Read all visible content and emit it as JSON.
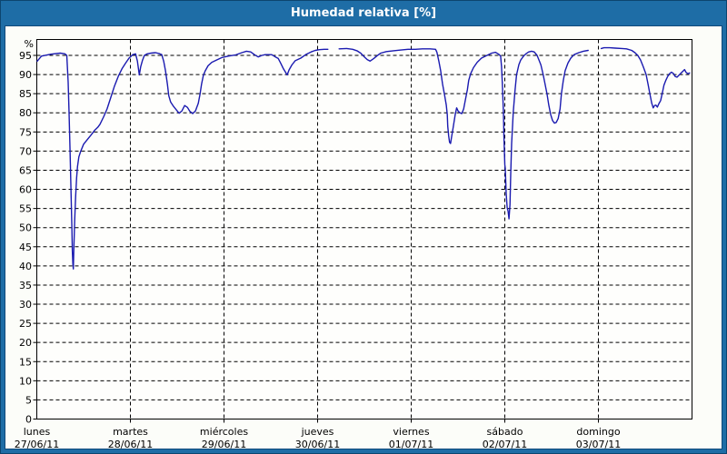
{
  "window": {
    "title": "Humedad relativa [%]"
  },
  "colors": {
    "titlebar_bg": "#1e6da6",
    "window_border": "#0d456f",
    "panel_bg": "#fcfdf9",
    "panel_border": "#10497a",
    "plot_bg": "#fefefc",
    "grid": "#000000",
    "axis_text": "#000000",
    "line": "#1a1ab0",
    "title_text": "#ffffff"
  },
  "chart_data": {
    "type": "line",
    "title": "Humedad relativa [%]",
    "unit_label": "%",
    "ylim": [
      0,
      100
    ],
    "ytick_values": [
      0,
      5,
      10,
      15,
      20,
      25,
      30,
      35,
      40,
      45,
      50,
      55,
      60,
      65,
      70,
      75,
      80,
      85,
      90,
      95
    ],
    "grid": "dashed",
    "legend_position": "none",
    "x_days": [
      {
        "name": "lunes",
        "date": "27/06/11"
      },
      {
        "name": "martes",
        "date": "28/06/11"
      },
      {
        "name": "miércoles",
        "date": "29/06/11"
      },
      {
        "name": "jueves",
        "date": "30/06/11"
      },
      {
        "name": "viernes",
        "date": "01/07/11"
      },
      {
        "name": "sábado",
        "date": "02/07/11"
      },
      {
        "name": "domingo",
        "date": "03/07/11"
      }
    ],
    "series": [
      {
        "name": "Humedad relativa",
        "color": "#1a1ab0",
        "x_unit": "days_since_start",
        "segments": [
          [
            [
              0.005,
              93.5
            ],
            [
              0.05,
              94.8
            ],
            [
              0.15,
              95.3
            ],
            [
              0.25,
              95.6
            ],
            [
              0.3,
              95.4
            ],
            [
              0.32,
              95.0
            ],
            [
              0.335,
              88
            ],
            [
              0.345,
              80
            ],
            [
              0.355,
              70
            ],
            [
              0.365,
              60
            ],
            [
              0.375,
              50
            ],
            [
              0.38,
              44
            ],
            [
              0.385,
              40.5
            ],
            [
              0.39,
              39.2
            ],
            [
              0.395,
              44
            ],
            [
              0.405,
              52
            ],
            [
              0.415,
              58
            ],
            [
              0.425,
              63
            ],
            [
              0.435,
              66
            ],
            [
              0.45,
              68.5
            ],
            [
              0.47,
              70
            ],
            [
              0.5,
              71.8
            ],
            [
              0.54,
              73
            ],
            [
              0.58,
              74.2
            ],
            [
              0.62,
              75.5
            ],
            [
              0.65,
              76.2
            ],
            [
              0.675,
              77
            ],
            [
              0.715,
              79
            ],
            [
              0.75,
              81
            ],
            [
              0.79,
              84
            ],
            [
              0.83,
              87
            ],
            [
              0.87,
              89.5
            ],
            [
              0.91,
              91.5
            ],
            [
              0.95,
              93
            ],
            [
              0.985,
              94.3
            ],
            [
              1.025,
              95.2
            ],
            [
              1.055,
              95.4
            ],
            [
              1.075,
              93.5
            ],
            [
              1.095,
              89.9
            ],
            [
              1.11,
              92
            ],
            [
              1.13,
              93.8
            ],
            [
              1.15,
              95.0
            ],
            [
              1.18,
              95.4
            ],
            [
              1.22,
              95.6
            ],
            [
              1.27,
              95.7
            ],
            [
              1.305,
              95.5
            ],
            [
              1.335,
              95.2
            ],
            [
              1.355,
              93.5
            ],
            [
              1.375,
              91
            ],
            [
              1.395,
              87.5
            ],
            [
              1.41,
              84.5
            ],
            [
              1.43,
              82.8
            ],
            [
              1.46,
              81.7
            ],
            [
              1.49,
              80.8
            ],
            [
              1.52,
              79.9
            ],
            [
              1.55,
              80.5
            ],
            [
              1.58,
              81.9
            ],
            [
              1.61,
              81.4
            ],
            [
              1.635,
              80.4
            ],
            [
              1.665,
              79.8
            ],
            [
              1.695,
              80.5
            ],
            [
              1.725,
              82.5
            ],
            [
              1.745,
              85
            ],
            [
              1.76,
              87.5
            ],
            [
              1.78,
              89.8
            ],
            [
              1.8,
              91
            ],
            [
              1.83,
              92.3
            ],
            [
              1.87,
              93.2
            ],
            [
              1.92,
              93.8
            ],
            [
              1.975,
              94.4
            ],
            [
              2.045,
              94.8
            ],
            [
              2.12,
              95.1
            ],
            [
              2.19,
              95.7
            ],
            [
              2.24,
              96.1
            ],
            [
              2.285,
              95.9
            ],
            [
              2.325,
              95.2
            ],
            [
              2.365,
              94.6
            ],
            [
              2.405,
              95.0
            ],
            [
              2.44,
              95.2
            ],
            [
              2.51,
              95.2
            ],
            [
              2.55,
              94.6
            ],
            [
              2.58,
              94.2
            ],
            [
              2.605,
              93.0
            ],
            [
              2.635,
              91.5
            ],
            [
              2.675,
              89.9
            ],
            [
              2.695,
              91.2
            ],
            [
              2.725,
              92.5
            ],
            [
              2.76,
              93.6
            ],
            [
              2.82,
              94.3
            ],
            [
              2.88,
              95.3
            ],
            [
              2.93,
              95.9
            ],
            [
              2.975,
              96.3
            ],
            [
              3.02,
              96.5
            ],
            [
              3.07,
              96.6
            ],
            [
              3.11,
              96.6
            ]
          ],
          [
            [
              3.23,
              96.7
            ],
            [
              3.31,
              96.8
            ],
            [
              3.375,
              96.6
            ],
            [
              3.42,
              96.2
            ],
            [
              3.46,
              95.6
            ],
            [
              3.5,
              94.6
            ],
            [
              3.53,
              93.9
            ],
            [
              3.56,
              93.5
            ],
            [
              3.6,
              94.2
            ],
            [
              3.635,
              94.9
            ],
            [
              3.675,
              95.6
            ],
            [
              3.735,
              96.0
            ],
            [
              3.81,
              96.2
            ],
            [
              3.89,
              96.4
            ],
            [
              3.965,
              96.6
            ],
            [
              4.045,
              96.6
            ],
            [
              4.12,
              96.7
            ],
            [
              4.2,
              96.7
            ],
            [
              4.26,
              96.6
            ],
            [
              4.275,
              95.8
            ],
            [
              4.295,
              93.5
            ],
            [
              4.315,
              91
            ],
            [
              4.335,
              87.5
            ],
            [
              4.355,
              84.8
            ],
            [
              4.375,
              82
            ],
            [
              4.385,
              79.5
            ],
            [
              4.39,
              76.5
            ],
            [
              4.4,
              74
            ],
            [
              4.41,
              72.3
            ],
            [
              4.42,
              72.0
            ],
            [
              4.43,
              73.5
            ],
            [
              4.45,
              76.5
            ],
            [
              4.47,
              79.5
            ],
            [
              4.485,
              81.3
            ],
            [
              4.5,
              80.5
            ],
            [
              4.52,
              80.0
            ],
            [
              4.54,
              79.8
            ],
            [
              4.56,
              81
            ],
            [
              4.58,
              83.5
            ],
            [
              4.6,
              86
            ],
            [
              4.615,
              88.5
            ],
            [
              4.635,
              90.2
            ],
            [
              4.665,
              91.8
            ],
            [
              4.705,
              93.2
            ],
            [
              4.75,
              94.3
            ],
            [
              4.81,
              95.0
            ],
            [
              4.86,
              95.6
            ],
            [
              4.9,
              95.8
            ],
            [
              4.935,
              95.3
            ],
            [
              4.955,
              94.8
            ],
            [
              4.965,
              92
            ],
            [
              4.975,
              87
            ],
            [
              4.985,
              80
            ],
            [
              4.99,
              74
            ],
            [
              5.0,
              66.5
            ],
            [
              5.005,
              65.5
            ],
            [
              5.015,
              59
            ],
            [
              5.025,
              55.2
            ],
            [
              5.035,
              54.3
            ],
            [
              5.045,
              52.3
            ],
            [
              5.055,
              56
            ],
            [
              5.063,
              64
            ],
            [
              5.073,
              72
            ],
            [
              5.083,
              76.5
            ],
            [
              5.09,
              80.2
            ],
            [
              5.11,
              86
            ],
            [
              5.125,
              89.9
            ],
            [
              5.15,
              92.6
            ],
            [
              5.17,
              93.8
            ],
            [
              5.2,
              94.8
            ],
            [
              5.23,
              95.5
            ],
            [
              5.255,
              95.9
            ],
            [
              5.285,
              96.1
            ],
            [
              5.315,
              95.9
            ],
            [
              5.345,
              95.0
            ],
            [
              5.365,
              93.8
            ],
            [
              5.385,
              92.5
            ],
            [
              5.41,
              90.0
            ],
            [
              5.43,
              87.5
            ],
            [
              5.45,
              85.0
            ],
            [
              5.47,
              82
            ],
            [
              5.49,
              79.5
            ],
            [
              5.51,
              78.0
            ],
            [
              5.53,
              77.3
            ],
            [
              5.55,
              77.5
            ],
            [
              5.57,
              78.5
            ],
            [
              5.59,
              81
            ],
            [
              5.605,
              85
            ],
            [
              5.625,
              88.5
            ],
            [
              5.645,
              91
            ],
            [
              5.675,
              93
            ],
            [
              5.705,
              94.3
            ],
            [
              5.74,
              95.2
            ],
            [
              5.79,
              95.7
            ],
            [
              5.84,
              96.1
            ],
            [
              5.89,
              96.3
            ]
          ],
          [
            [
              6.03,
              96.8
            ],
            [
              6.06,
              97.0
            ],
            [
              6.12,
              97.0
            ],
            [
              6.18,
              96.9
            ],
            [
              6.25,
              96.8
            ],
            [
              6.3,
              96.7
            ],
            [
              6.355,
              96.3
            ],
            [
              6.39,
              95.7
            ],
            [
              6.42,
              95.0
            ],
            [
              6.45,
              93.8
            ],
            [
              6.48,
              92
            ],
            [
              6.51,
              90
            ],
            [
              6.53,
              87.5
            ],
            [
              6.55,
              85
            ],
            [
              6.57,
              82.5
            ],
            [
              6.585,
              81.3
            ],
            [
              6.6,
              81.9
            ],
            [
              6.615,
              82.0
            ],
            [
              6.63,
              81.5
            ],
            [
              6.645,
              82.3
            ],
            [
              6.665,
              83.2
            ],
            [
              6.685,
              85.5
            ],
            [
              6.7,
              87.2
            ],
            [
              6.72,
              88.5
            ],
            [
              6.74,
              89.5
            ],
            [
              6.76,
              90.2
            ],
            [
              6.78,
              90.6
            ],
            [
              6.8,
              90.3
            ],
            [
              6.82,
              89.5
            ],
            [
              6.84,
              89.3
            ],
            [
              6.86,
              89.8
            ],
            [
              6.88,
              90.3
            ],
            [
              6.9,
              90.8
            ],
            [
              6.92,
              91.3
            ],
            [
              6.935,
              90.6
            ],
            [
              6.955,
              90.2
            ],
            [
              6.975,
              90.4
            ]
          ]
        ]
      }
    ]
  }
}
